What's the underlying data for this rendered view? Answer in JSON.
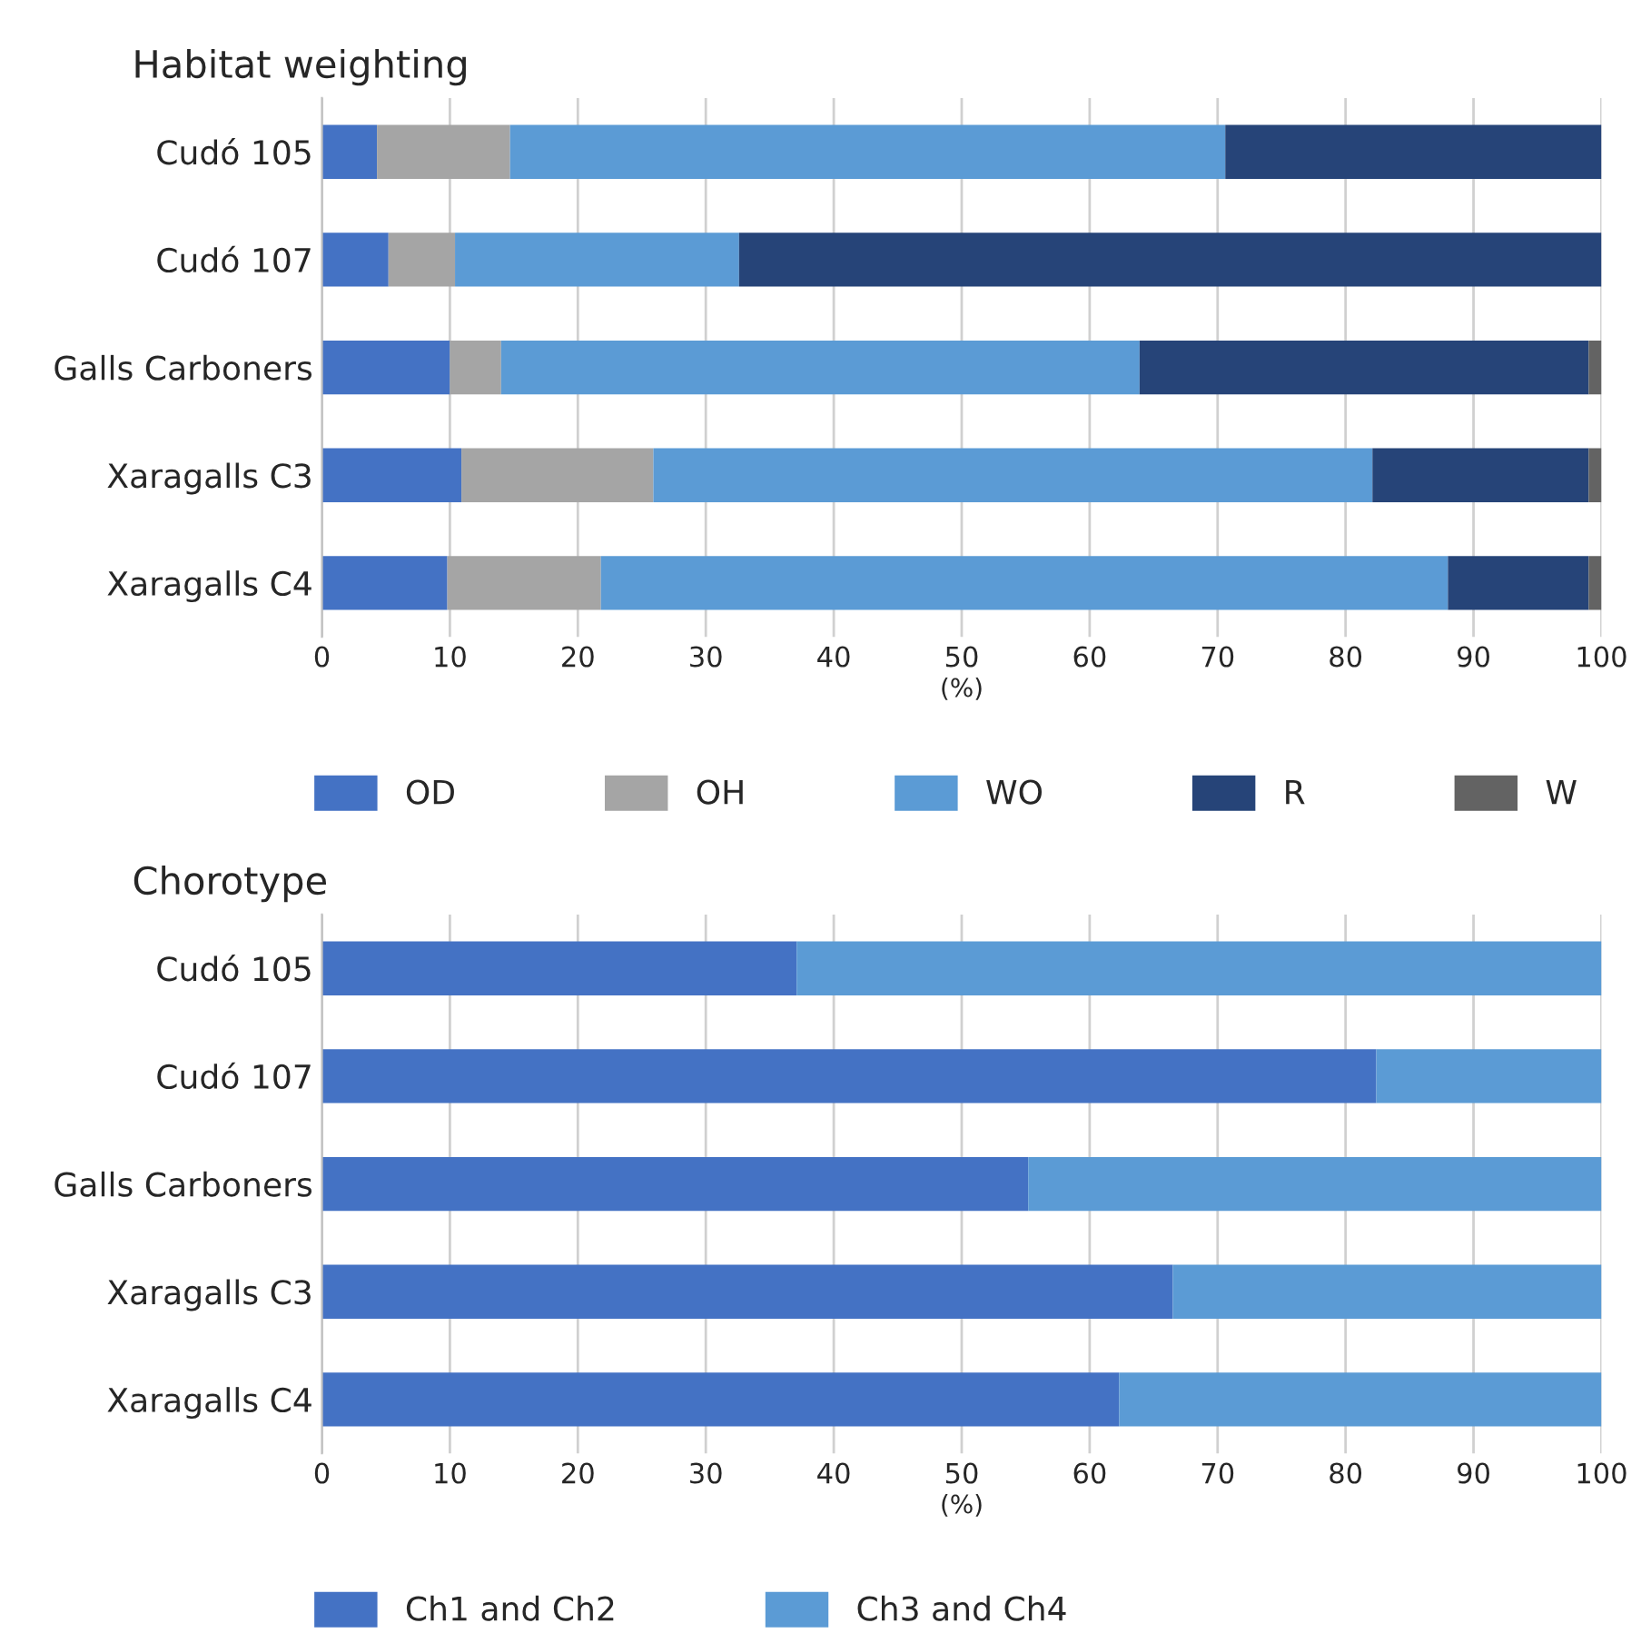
{
  "chart_data": [
    {
      "type": "bar",
      "title": "Habitat weighting",
      "xlabel": "(%)",
      "orientation": "horizontal",
      "stacked": true,
      "categories": [
        "Cudó 105",
        "Cudó 107",
        "Galls Carboners",
        "Xaragalls C3",
        "Xaragalls C4"
      ],
      "xlim": [
        0,
        100
      ],
      "xticks": [
        0,
        10,
        20,
        30,
        40,
        50,
        60,
        70,
        80,
        90,
        100
      ],
      "grid": "x",
      "legend": "bottom",
      "series": [
        {
          "name": "OD",
          "color": "#4472c4",
          "values": [
            4.3,
            5.2,
            10.0,
            10.9,
            9.8
          ]
        },
        {
          "name": "OH",
          "color": "#a5a5a5",
          "values": [
            10.4,
            5.2,
            4.0,
            15.0,
            12.0
          ]
        },
        {
          "name": "WO",
          "color": "#5b9bd5",
          "values": [
            55.9,
            22.2,
            49.9,
            56.2,
            66.2
          ]
        },
        {
          "name": "R",
          "color": "#264478",
          "values": [
            29.4,
            67.4,
            35.1,
            16.9,
            11.0
          ]
        },
        {
          "name": "W",
          "color": "#636363",
          "values": [
            null,
            null,
            1.0,
            1.0,
            1.0
          ]
        }
      ]
    },
    {
      "type": "bar",
      "title": "Chorotype",
      "xlabel": "(%)",
      "orientation": "horizontal",
      "stacked": true,
      "categories": [
        "Cudó 105",
        "Cudó 107",
        "Galls Carboners",
        "Xaragalls C3",
        "Xaragalls C4"
      ],
      "xlim": [
        0,
        100
      ],
      "xticks": [
        0,
        10,
        20,
        30,
        40,
        50,
        60,
        70,
        80,
        90,
        100
      ],
      "grid": "x",
      "legend": "bottom",
      "series": [
        {
          "name": "Ch1 and Ch2",
          "color": "#4472c4",
          "values": [
            37.1,
            82.4,
            55.2,
            66.5,
            62.3
          ]
        },
        {
          "name": "Ch3 and Ch4",
          "color": "#5b9bd5",
          "values": [
            62.9,
            17.6,
            44.8,
            33.5,
            37.7
          ]
        }
      ]
    }
  ]
}
